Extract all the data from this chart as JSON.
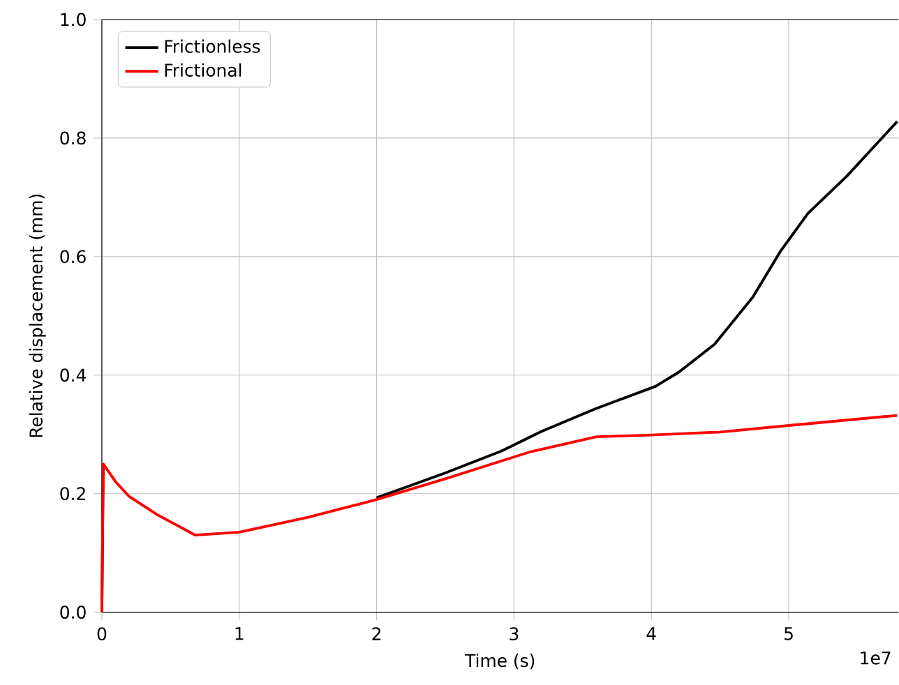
{
  "chart_data": {
    "type": "line",
    "xlabel": "Time (s)",
    "ylabel": "Relative displacement (mm)",
    "annotations": [
      "1e7"
    ],
    "xlim": [
      0,
      5.8
    ],
    "ylim": [
      0,
      1.0
    ],
    "xticks": [
      0,
      1,
      2,
      3,
      4,
      5
    ],
    "yticks": [
      {
        "value": 0,
        "label": "0.0"
      },
      0.2,
      0.4,
      0.6,
      0.8,
      {
        "value": 1.0,
        "label": "1.0"
      }
    ],
    "grid": true,
    "legend": "top left",
    "series": [
      {
        "name": "Frictionless",
        "color": "#000000",
        "x": [
          0,
          0.01,
          0.1,
          0.2,
          0.4,
          0.68,
          1.0,
          1.5,
          2.0,
          2.5,
          2.91,
          3.2,
          3.59,
          4.03,
          4.2,
          4.46,
          4.74,
          4.94,
          5.14,
          5.42,
          5.79
        ],
        "values": [
          0,
          0.25,
          null,
          null,
          null,
          null,
          null,
          null,
          0.193,
          0.235,
          0.272,
          0.305,
          0.343,
          0.381,
          0.405,
          0.452,
          0.532,
          0.609,
          0.673,
          0.735,
          0.828
        ]
      },
      {
        "name": "Frictional",
        "color": "#ff0000",
        "x": [
          0,
          0.01,
          0.1,
          0.2,
          0.4,
          0.68,
          1.0,
          1.5,
          2.0,
          2.5,
          3.11,
          3.6,
          4.0,
          4.5,
          5.0,
          5.79
        ],
        "values": [
          0,
          0.25,
          0.22,
          0.195,
          0.165,
          0.13,
          0.135,
          0.16,
          0.19,
          0.225,
          0.27,
          0.296,
          0.299,
          0.304,
          0.315,
          0.332
        ]
      }
    ]
  }
}
